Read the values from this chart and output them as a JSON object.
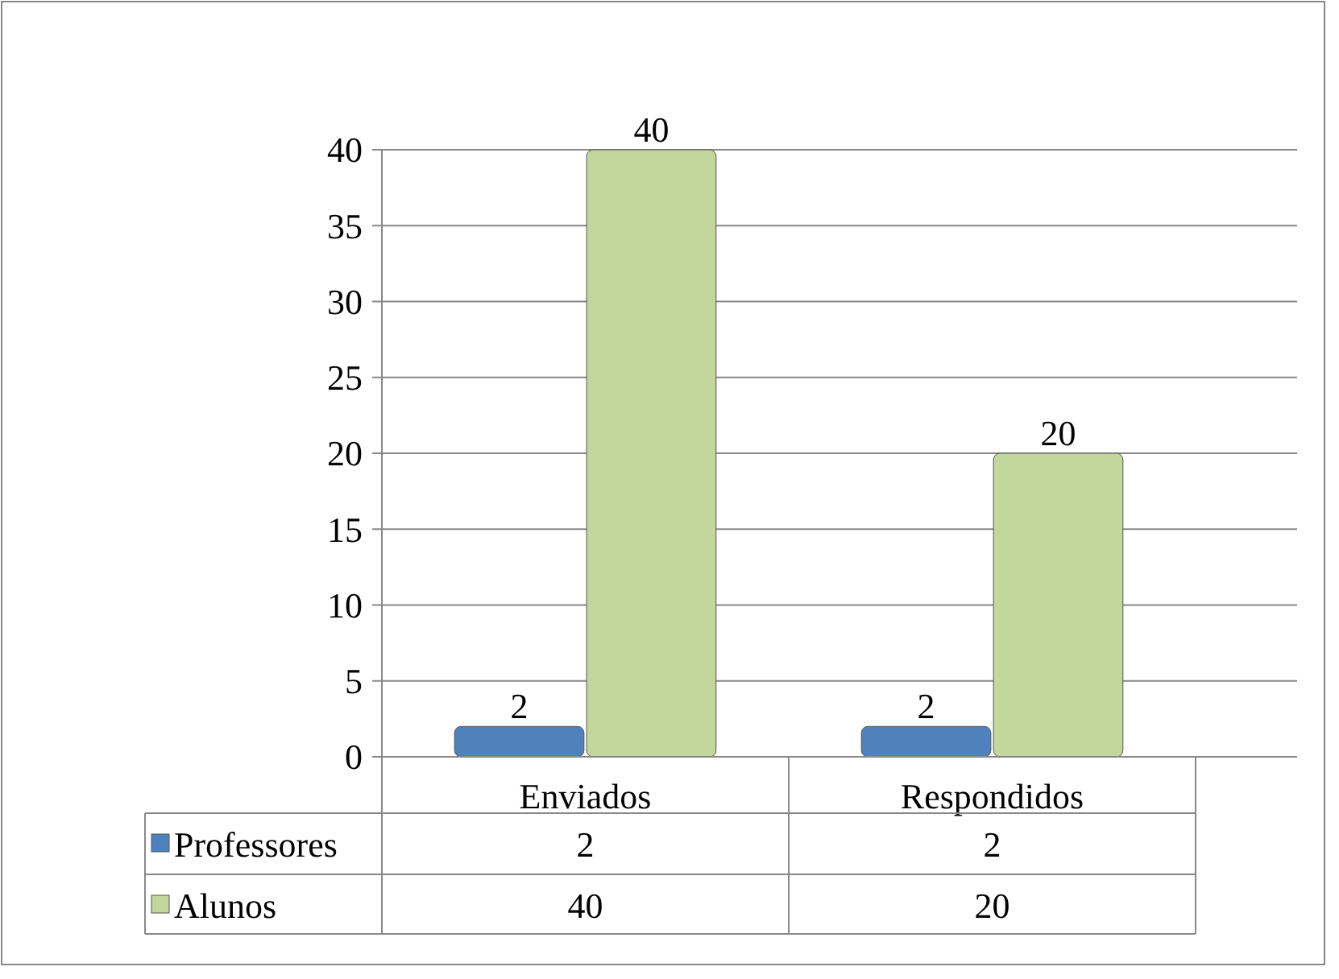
{
  "chart_data": {
    "type": "bar",
    "categories": [
      "Enviados",
      "Respondidos"
    ],
    "series": [
      {
        "name": "Professores",
        "color": "#4f81bd",
        "values": [
          2,
          2
        ],
        "value_labels": [
          "2",
          "2"
        ]
      },
      {
        "name": "Alunos",
        "color": "#c3d69b",
        "values": [
          40,
          20
        ],
        "value_labels": [
          "40",
          "20"
        ]
      }
    ],
    "annotations": [
      "2",
      "2",
      "40",
      "20"
    ],
    "ylim": [
      0,
      40
    ],
    "yticks": [
      0,
      5,
      10,
      15,
      20,
      25,
      30,
      35,
      40
    ],
    "grid": "y",
    "legend": "bottom"
  }
}
